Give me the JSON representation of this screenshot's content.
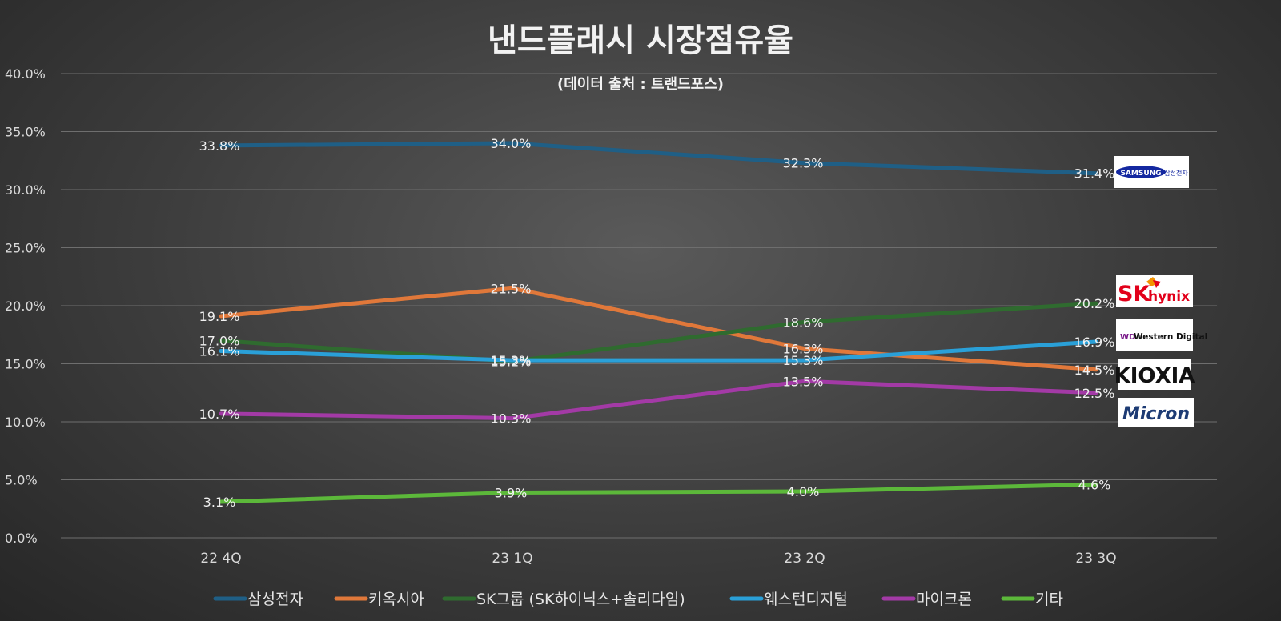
{
  "title": "낸드플래시 시장점유율",
  "subtitle": "(데이터 출처 : 트랜드포스)",
  "logos": [
    {
      "name": "samsung",
      "text": "SAMSUNG",
      "subtext": "삼성전자",
      "color": "#1428a0"
    },
    {
      "name": "sk-hynix",
      "text": "SK",
      "subtext": "hynix",
      "color": "#e2001a"
    },
    {
      "name": "western-digital",
      "text": "Western Digital",
      "color": "#7a1a8a"
    },
    {
      "name": "kioxia",
      "text": "KIOXIA",
      "color": "#111111"
    },
    {
      "name": "micron",
      "text": "Micron",
      "color": "#1d3b74"
    }
  ],
  "chart_data": {
    "type": "line",
    "title": "낸드플래시 시장점유율",
    "subtitle": "(데이터 출처 : 트랜드포스)",
    "categories": [
      "22 4Q",
      "23 1Q",
      "23 2Q",
      "23 3Q"
    ],
    "ylim": [
      0,
      40
    ],
    "yticks": [
      "0.0%",
      "5.0%",
      "10.0%",
      "15.0%",
      "20.0%",
      "25.0%",
      "30.0%",
      "35.0%",
      "40.0%"
    ],
    "grid": true,
    "legend_position": "bottom",
    "series": [
      {
        "name": "삼성전자",
        "color": "#1f5f86",
        "values": [
          33.8,
          34.0,
          32.3,
          31.4
        ],
        "labels": [
          "33.8%",
          "34.0%",
          "32.3%",
          "31.4%"
        ]
      },
      {
        "name": "키옥시아",
        "color": "#e0783a",
        "values": [
          19.1,
          21.5,
          16.3,
          14.5
        ],
        "labels": [
          "19.1%",
          "21.5%",
          "16.3%",
          "14.5%"
        ]
      },
      {
        "name": "SK그룹 (SK하이닉스+솔리다임)",
        "color": "#2f6b2f",
        "values": [
          17.0,
          15.2,
          18.6,
          20.2
        ],
        "labels": [
          "17.0%",
          "15.2%",
          "18.6%",
          "20.2%"
        ]
      },
      {
        "name": "웨스턴디지털",
        "color": "#2aa0d8",
        "values": [
          16.1,
          15.3,
          15.3,
          16.9
        ],
        "labels": [
          "16.1%",
          "15.3%",
          "15.3%",
          "16.9%"
        ]
      },
      {
        "name": "마이크론",
        "color": "#a33aa6",
        "values": [
          10.7,
          10.3,
          13.5,
          12.5
        ],
        "labels": [
          "10.7%",
          "10.3%",
          "13.5%",
          "12.5%"
        ]
      },
      {
        "name": "기타",
        "color": "#5cb83a",
        "values": [
          3.1,
          3.9,
          4.0,
          4.6
        ],
        "labels": [
          "3.1%",
          "3.9%",
          "4.0%",
          "4.6%"
        ]
      }
    ]
  }
}
